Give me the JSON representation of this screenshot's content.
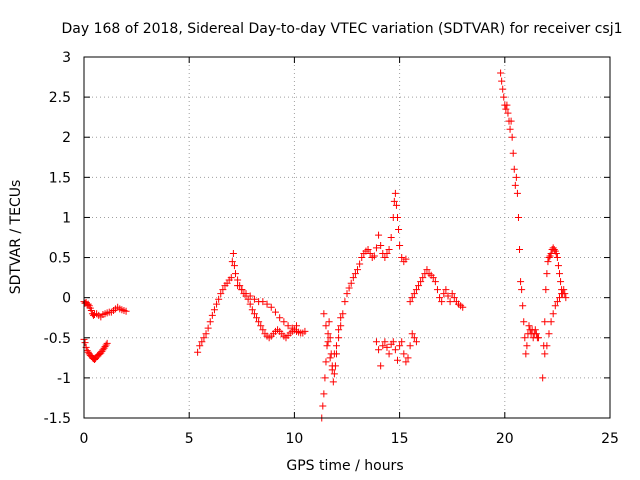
{
  "chart_data": {
    "type": "scatter",
    "title": "Day 168 of 2018, Sidereal Day-to-day VTEC variation (SDTVAR) for receiver csj1",
    "xlabel": "GPS time / hours",
    "ylabel": "SDTVAR / TECUs",
    "xlim": [
      0,
      25
    ],
    "ylim": [
      -1.5,
      3
    ],
    "grid": true,
    "marker": "plus",
    "x_ticks": [
      0,
      5,
      10,
      15,
      20,
      25
    ],
    "x_tick_labels": [
      "0",
      "5",
      "10",
      "15",
      "20",
      "25"
    ],
    "y_ticks": [
      -1.5,
      -1,
      -0.5,
      0,
      0.5,
      1,
      1.5,
      2,
      2.5,
      3
    ],
    "y_tick_labels": [
      "-1.5",
      "-1",
      "-0.5",
      "0",
      "0.5",
      "1",
      "1.5",
      "2",
      "2.5",
      "3"
    ],
    "color": "#ff0000",
    "series": [
      {
        "name": "seg-0-2h-upper",
        "x": [
          0.0,
          0.05,
          0.1,
          0.15,
          0.2,
          0.25,
          0.3,
          0.35,
          0.4,
          0.45,
          0.5,
          0.6,
          0.7,
          0.8,
          0.9,
          1.0,
          1.1,
          1.2,
          1.3,
          1.4,
          1.5,
          1.6,
          1.7,
          1.8,
          1.9,
          2.0
        ],
        "y": [
          -0.05,
          -0.07,
          -0.06,
          -0.09,
          -0.08,
          -0.1,
          -0.13,
          -0.16,
          -0.2,
          -0.22,
          -0.21,
          -0.2,
          -0.22,
          -0.24,
          -0.21,
          -0.2,
          -0.19,
          -0.18,
          -0.18,
          -0.16,
          -0.14,
          -0.12,
          -0.14,
          -0.15,
          -0.16,
          -0.17
        ]
      },
      {
        "name": "seg-0-1h-lower",
        "x": [
          0.0,
          0.05,
          0.1,
          0.15,
          0.2,
          0.25,
          0.3,
          0.35,
          0.4,
          0.45,
          0.5,
          0.55,
          0.6,
          0.65,
          0.7,
          0.75,
          0.8,
          0.85,
          0.9,
          0.95,
          1.0,
          1.05,
          1.1
        ],
        "y": [
          -0.52,
          -0.56,
          -0.62,
          -0.66,
          -0.68,
          -0.7,
          -0.72,
          -0.73,
          -0.75,
          -0.76,
          -0.77,
          -0.76,
          -0.74,
          -0.72,
          -0.71,
          -0.7,
          -0.69,
          -0.67,
          -0.65,
          -0.63,
          -0.61,
          -0.59,
          -0.57
        ]
      },
      {
        "name": "seg-5-11h",
        "x": [
          5.4,
          5.5,
          5.6,
          5.7,
          5.8,
          5.9,
          6.0,
          6.1,
          6.2,
          6.3,
          6.4,
          6.5,
          6.6,
          6.7,
          6.8,
          6.9,
          7.0,
          7.05,
          7.1,
          7.15,
          7.2,
          7.3,
          7.4,
          7.5,
          7.6,
          7.7,
          7.8,
          7.9,
          8.0,
          8.1,
          8.2,
          8.3,
          8.4,
          8.5,
          8.6,
          8.7,
          8.8,
          8.9,
          9.0,
          9.1,
          9.2,
          9.3,
          9.4,
          9.5,
          9.6,
          9.7,
          9.8,
          9.9,
          10.0,
          10.1,
          10.2,
          10.3,
          10.4,
          10.5
        ],
        "y": [
          -0.68,
          -0.6,
          -0.55,
          -0.5,
          -0.45,
          -0.38,
          -0.3,
          -0.22,
          -0.15,
          -0.08,
          -0.02,
          0.05,
          0.1,
          0.15,
          0.18,
          0.22,
          0.25,
          0.45,
          0.55,
          0.4,
          0.3,
          0.22,
          0.15,
          0.1,
          0.05,
          0.02,
          -0.02,
          -0.08,
          -0.15,
          -0.2,
          -0.25,
          -0.3,
          -0.35,
          -0.4,
          -0.45,
          -0.48,
          -0.5,
          -0.48,
          -0.45,
          -0.42,
          -0.4,
          -0.42,
          -0.45,
          -0.48,
          -0.5,
          -0.47,
          -0.44,
          -0.42,
          -0.4,
          -0.42,
          -0.43,
          -0.44,
          -0.44,
          -0.42
        ]
      },
      {
        "name": "seg-7-10h-upper-branch",
        "x": [
          7.3,
          7.5,
          7.7,
          7.9,
          8.1,
          8.3,
          8.5,
          8.7,
          8.9,
          9.1,
          9.3,
          9.5,
          9.7,
          9.9,
          10.1
        ],
        "y": [
          0.15,
          0.1,
          0.05,
          0.02,
          -0.02,
          -0.05,
          -0.05,
          -0.08,
          -0.12,
          -0.18,
          -0.25,
          -0.3,
          -0.35,
          -0.38,
          -0.35
        ]
      },
      {
        "name": "seg-11-15h",
        "x": [
          11.3,
          11.35,
          11.4,
          11.45,
          11.5,
          11.55,
          11.6,
          11.65,
          11.7,
          11.75,
          11.8,
          11.85,
          11.9,
          11.95,
          12.0,
          12.1,
          12.2,
          12.3,
          12.4,
          12.5,
          12.6,
          12.7,
          12.8,
          12.9,
          13.0,
          13.1,
          13.2,
          13.3,
          13.4,
          13.5,
          13.6,
          13.7,
          13.8,
          13.9,
          14.0,
          14.1,
          14.2,
          14.3,
          14.4,
          14.5,
          14.6,
          14.7,
          14.75,
          14.8,
          14.85,
          14.9,
          14.95,
          15.0,
          15.1,
          15.2,
          15.3
        ],
        "y": [
          -1.5,
          -1.35,
          -1.2,
          -1.0,
          -0.8,
          -0.6,
          -0.45,
          -0.3,
          -0.5,
          -0.7,
          -0.9,
          -1.05,
          -0.95,
          -0.85,
          -0.7,
          -0.5,
          -0.35,
          -0.2,
          -0.05,
          0.05,
          0.12,
          0.18,
          0.25,
          0.3,
          0.35,
          0.42,
          0.5,
          0.55,
          0.58,
          0.6,
          0.55,
          0.5,
          0.52,
          0.62,
          0.78,
          0.65,
          0.55,
          0.5,
          0.55,
          0.6,
          0.75,
          1.0,
          1.2,
          1.3,
          1.15,
          1.0,
          0.85,
          0.65,
          0.5,
          0.45,
          0.48
        ]
      },
      {
        "name": "seg-11-13h-lower-branch",
        "x": [
          11.4,
          11.5,
          11.6,
          11.7,
          11.8,
          11.9,
          12.0,
          12.1,
          12.2
        ],
        "y": [
          -0.2,
          -0.35,
          -0.55,
          -0.75,
          -0.85,
          -0.7,
          -0.6,
          -0.4,
          -0.25
        ]
      },
      {
        "name": "seg-14-15h-lower",
        "x": [
          13.9,
          14.0,
          14.1,
          14.2,
          14.3,
          14.4,
          14.5,
          14.6,
          14.7,
          14.8,
          14.9,
          15.0,
          15.1,
          15.2,
          15.3,
          15.4,
          15.5,
          15.6,
          15.7,
          15.8
        ],
        "y": [
          -0.55,
          -0.65,
          -0.85,
          -0.6,
          -0.55,
          -0.62,
          -0.7,
          -0.58,
          -0.55,
          -0.65,
          -0.78,
          -0.6,
          -0.55,
          -0.7,
          -0.8,
          -0.75,
          -0.6,
          -0.45,
          -0.5,
          -0.55
        ]
      },
      {
        "name": "seg-15-18h",
        "x": [
          15.5,
          15.6,
          15.7,
          15.8,
          15.9,
          16.0,
          16.1,
          16.2,
          16.3,
          16.4,
          16.5,
          16.6,
          16.7,
          16.8,
          16.9,
          17.0,
          17.1,
          17.2,
          17.3,
          17.4,
          17.5,
          17.6,
          17.7,
          17.8,
          17.9,
          18.0
        ],
        "y": [
          -0.05,
          0.0,
          0.05,
          0.1,
          0.15,
          0.2,
          0.25,
          0.3,
          0.35,
          0.3,
          0.28,
          0.25,
          0.2,
          0.1,
          0.0,
          -0.05,
          0.05,
          0.1,
          0.02,
          -0.05,
          0.05,
          0.0,
          -0.05,
          -0.08,
          -0.1,
          -0.12
        ]
      },
      {
        "name": "seg-19-23h",
        "x": [
          19.8,
          19.85,
          19.9,
          19.95,
          20.0,
          20.05,
          20.1,
          20.15,
          20.2,
          20.25,
          20.3,
          20.35,
          20.4,
          20.45,
          20.5,
          20.55,
          20.6,
          20.65,
          20.7,
          20.75,
          20.8,
          20.85,
          20.9,
          20.95,
          21.0,
          21.05,
          21.1,
          21.15,
          21.2,
          21.25,
          21.3,
          21.35,
          21.4,
          21.45,
          21.5,
          21.55,
          21.6
        ],
        "y": [
          2.8,
          2.7,
          2.6,
          2.5,
          2.4,
          2.35,
          2.4,
          2.3,
          2.2,
          2.1,
          2.2,
          2.0,
          1.8,
          1.6,
          1.4,
          1.5,
          1.3,
          1.0,
          0.6,
          0.2,
          0.1,
          -0.1,
          -0.3,
          -0.5,
          -0.7,
          -0.6,
          -0.45,
          -0.35,
          -0.4,
          -0.45,
          -0.4,
          -0.5,
          -0.45,
          -0.4,
          -0.45,
          -0.5,
          -0.5
        ]
      },
      {
        "name": "seg-21-23h-right",
        "x": [
          21.8,
          21.85,
          21.9,
          21.95,
          22.0,
          22.05,
          22.1,
          22.15,
          22.2,
          22.25,
          22.3,
          22.35,
          22.4,
          22.45,
          22.5,
          22.55,
          22.6,
          22.65,
          22.7,
          22.75,
          22.8,
          22.85,
          22.9
        ],
        "y": [
          -1.0,
          -0.6,
          -0.3,
          0.1,
          0.3,
          0.45,
          0.5,
          0.52,
          0.55,
          0.6,
          0.62,
          0.6,
          0.58,
          0.55,
          0.5,
          0.4,
          0.3,
          0.2,
          0.1,
          0.05,
          0.1,
          0.05,
          0.0
        ]
      },
      {
        "name": "seg-22-23h-lower-branch",
        "x": [
          21.9,
          22.0,
          22.1,
          22.2,
          22.3,
          22.4,
          22.5,
          22.6,
          22.7
        ],
        "y": [
          -0.7,
          -0.6,
          -0.45,
          -0.3,
          -0.2,
          -0.1,
          -0.05,
          0.0,
          0.05
        ]
      }
    ]
  }
}
